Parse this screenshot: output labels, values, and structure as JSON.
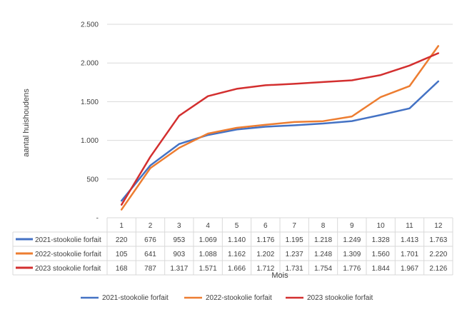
{
  "chart_data": {
    "type": "line",
    "title": "",
    "xlabel": "Mois",
    "ylabel": "aantal huishoudens",
    "ylim": [
      0,
      2500
    ],
    "yticks": [
      "-",
      "500",
      "1.000",
      "1.500",
      "2.000",
      "2.500"
    ],
    "ytick_values": [
      0,
      500,
      1000,
      1500,
      2000,
      2500
    ],
    "categories": [
      "1",
      "2",
      "3",
      "4",
      "5",
      "6",
      "7",
      "8",
      "9",
      "10",
      "11",
      "12"
    ],
    "grid": "horizontal",
    "legend_position": "bottom",
    "series": [
      {
        "name": "2021-stookolie forfait",
        "color": "#4472C4",
        "values": [
          220,
          676,
          953,
          1069,
          1140,
          1176,
          1195,
          1218,
          1249,
          1328,
          1413,
          1763
        ],
        "labels": [
          "220",
          "676",
          "953",
          "1.069",
          "1.140",
          "1.176",
          "1.195",
          "1.218",
          "1.249",
          "1.328",
          "1.413",
          "1.763"
        ]
      },
      {
        "name": "2022-stookolie forfait",
        "color": "#ED7D31",
        "values": [
          105,
          641,
          903,
          1088,
          1162,
          1202,
          1237,
          1248,
          1309,
          1560,
          1701,
          2220
        ],
        "labels": [
          "105",
          "641",
          "903",
          "1.088",
          "1.162",
          "1.202",
          "1.237",
          "1.248",
          "1.309",
          "1.560",
          "1.701",
          "2.220"
        ]
      },
      {
        "name": "2023 stookolie forfait",
        "color": "#D32F2F",
        "values": [
          168,
          787,
          1317,
          1571,
          1666,
          1712,
          1731,
          1754,
          1776,
          1844,
          1967,
          2126
        ],
        "labels": [
          "168",
          "787",
          "1.317",
          "1.571",
          "1.666",
          "1.712",
          "1.731",
          "1.754",
          "1.776",
          "1.844",
          "1.967",
          "2.126"
        ]
      }
    ]
  },
  "colors": {
    "grid": "#D9D9D9",
    "text": "#404040"
  }
}
